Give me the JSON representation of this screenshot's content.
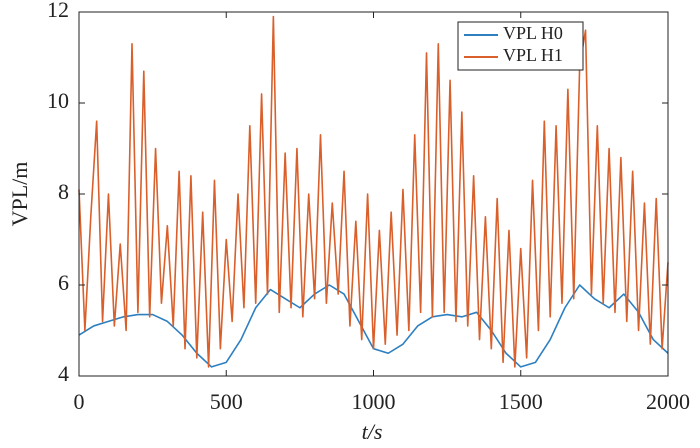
{
  "chart_data": {
    "type": "line",
    "xlabel": "t/s",
    "ylabel": "VPL/m",
    "xlim": [
      0,
      2000
    ],
    "xticks": [
      0,
      500,
      1000,
      1500,
      2000
    ],
    "ylim": [
      4,
      12
    ],
    "yticks": [
      4,
      6,
      8,
      10,
      12
    ],
    "legend": "upper right",
    "grid": false,
    "series": [
      {
        "name": "VPL H0",
        "color": "#2e7fc0",
        "x": [
          0,
          50,
          100,
          150,
          200,
          250,
          300,
          350,
          400,
          450,
          500,
          550,
          600,
          650,
          700,
          750,
          800,
          850,
          900,
          950,
          1000,
          1050,
          1100,
          1150,
          1200,
          1250,
          1300,
          1350,
          1400,
          1450,
          1500,
          1550,
          1600,
          1650,
          1700,
          1750,
          1800,
          1850,
          1900,
          1950,
          2000
        ],
        "values": [
          4.9,
          5.1,
          5.2,
          5.3,
          5.35,
          5.35,
          5.2,
          4.9,
          4.5,
          4.2,
          4.3,
          4.8,
          5.5,
          5.9,
          5.7,
          5.5,
          5.8,
          6.0,
          5.8,
          5.2,
          4.6,
          4.5,
          4.7,
          5.1,
          5.3,
          5.35,
          5.3,
          5.4,
          5.0,
          4.5,
          4.2,
          4.3,
          4.8,
          5.5,
          6.0,
          5.7,
          5.5,
          5.8,
          5.4,
          4.8,
          4.5
        ]
      },
      {
        "name": "VPL H1",
        "color": "#d95f2b",
        "x": [
          0,
          20,
          40,
          60,
          80,
          100,
          120,
          140,
          160,
          180,
          200,
          220,
          240,
          260,
          280,
          300,
          320,
          340,
          360,
          380,
          400,
          420,
          440,
          460,
          480,
          500,
          520,
          540,
          560,
          580,
          600,
          620,
          640,
          660,
          680,
          700,
          720,
          740,
          760,
          780,
          800,
          820,
          840,
          860,
          880,
          900,
          920,
          940,
          960,
          980,
          1000,
          1020,
          1040,
          1060,
          1080,
          1100,
          1120,
          1140,
          1160,
          1180,
          1200,
          1220,
          1240,
          1260,
          1280,
          1300,
          1320,
          1340,
          1360,
          1380,
          1400,
          1420,
          1440,
          1460,
          1480,
          1500,
          1520,
          1540,
          1560,
          1580,
          1600,
          1620,
          1640,
          1660,
          1680,
          1700,
          1720,
          1740,
          1760,
          1780,
          1800,
          1820,
          1840,
          1860,
          1880,
          1900,
          1920,
          1940,
          1960,
          1980,
          2000
        ],
        "values": [
          8.1,
          5.0,
          7.5,
          9.6,
          5.2,
          8.0,
          5.1,
          6.9,
          5.0,
          11.3,
          5.4,
          10.7,
          5.3,
          9.0,
          5.6,
          7.3,
          5.1,
          8.5,
          4.6,
          8.4,
          4.4,
          7.6,
          4.2,
          8.3,
          4.6,
          7.0,
          5.2,
          8.0,
          5.5,
          9.5,
          5.6,
          10.2,
          5.8,
          11.9,
          5.4,
          8.9,
          5.5,
          9.0,
          5.3,
          8.0,
          5.7,
          9.3,
          5.6,
          7.8,
          5.8,
          8.5,
          5.1,
          7.4,
          4.8,
          8.0,
          4.6,
          7.2,
          4.7,
          7.6,
          4.9,
          8.1,
          5.0,
          9.3,
          5.4,
          11.1,
          5.3,
          11.3,
          5.4,
          10.5,
          5.2,
          9.8,
          5.1,
          8.4,
          4.8,
          7.5,
          4.6,
          7.9,
          4.3,
          7.2,
          4.2,
          6.8,
          4.4,
          8.3,
          5.0,
          9.6,
          5.3,
          9.5,
          5.6,
          10.3,
          5.7,
          10.8,
          11.6,
          5.8,
          9.5,
          5.6,
          9.0,
          5.4,
          8.8,
          5.2,
          8.5,
          5.0,
          7.8,
          4.7,
          7.9,
          4.6,
          6.5
        ]
      }
    ]
  }
}
